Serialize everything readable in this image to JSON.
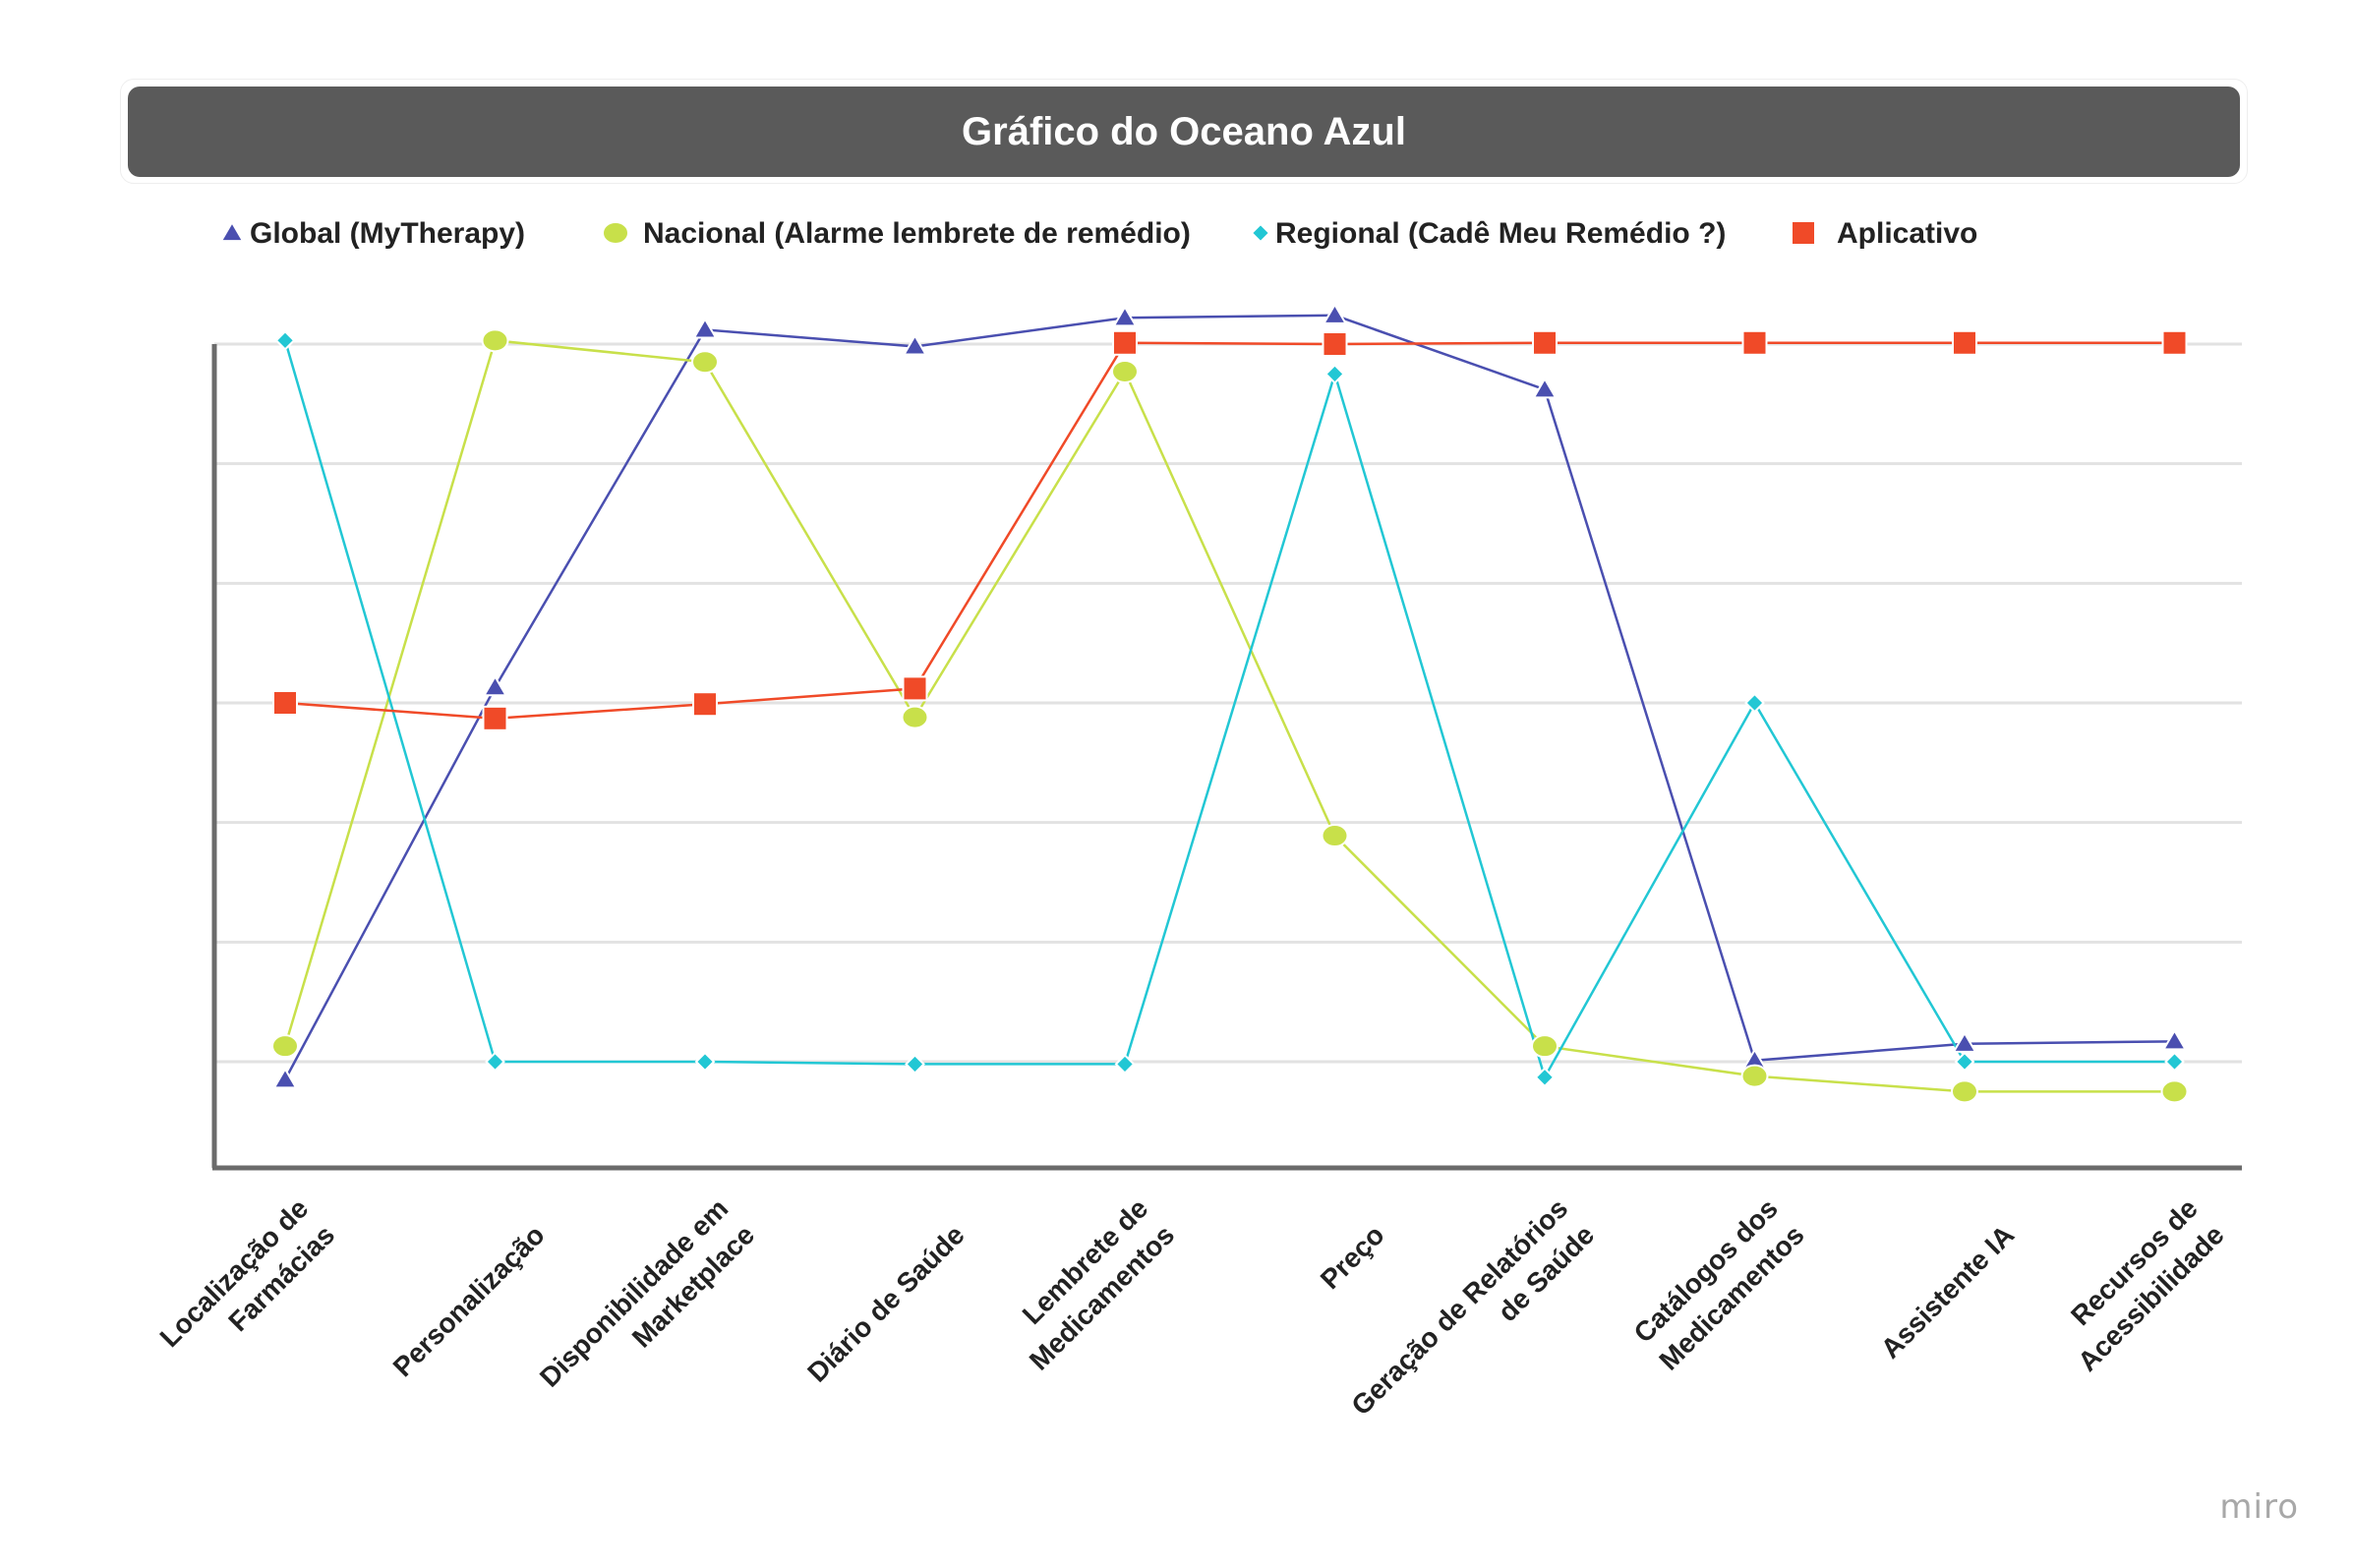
{
  "chart_data": {
    "type": "line",
    "title": "Gráfico do Oceano Azul",
    "xlabel": "",
    "ylabel": "",
    "ylim": [
      0,
      7
    ],
    "grid": true,
    "legend_position": "top",
    "categories": [
      [
        "Localização de",
        "Farmácias"
      ],
      [
        "Personalização"
      ],
      [
        "Disponibilidade em",
        "Marketplace"
      ],
      [
        "Diário de Saúde"
      ],
      [
        "Lembrete de",
        "Medicamentos"
      ],
      [
        "Preço"
      ],
      [
        "Geração de Relatórios",
        "de Saúde"
      ],
      [
        "Catálogos dos",
        "Medicamentos"
      ],
      [
        "Assistente IA"
      ],
      [
        "Recursos de",
        "Acessibilidade"
      ]
    ],
    "series": [
      {
        "name": "Global (MyTherapy)",
        "marker": "triangle",
        "color": "#4a4fb0",
        "values": [
          0.85,
          4.13,
          7.12,
          6.98,
          7.22,
          7.24,
          6.62,
          1.01,
          1.15,
          1.17
        ]
      },
      {
        "name": "Nacional (Alarme lembrete de remédio)",
        "marker": "circle",
        "color": "#c8e04a",
        "values": [
          1.13,
          7.03,
          6.85,
          3.88,
          6.77,
          2.89,
          1.13,
          0.88,
          0.75,
          0.75
        ]
      },
      {
        "name": "Regional (Cadê Meu Remédio ?)",
        "marker": "diamond",
        "color": "#22c7d4",
        "values": [
          7.03,
          1.0,
          1.0,
          0.98,
          0.98,
          6.75,
          0.87,
          4.0,
          1.0,
          1.0
        ]
      },
      {
        "name": "Aplicativo",
        "marker": "square",
        "color": "#f04a28",
        "values": [
          4.0,
          3.87,
          3.99,
          4.12,
          7.01,
          7.0,
          7.01,
          7.01,
          7.01,
          7.01
        ]
      }
    ]
  },
  "watermark": "miro"
}
